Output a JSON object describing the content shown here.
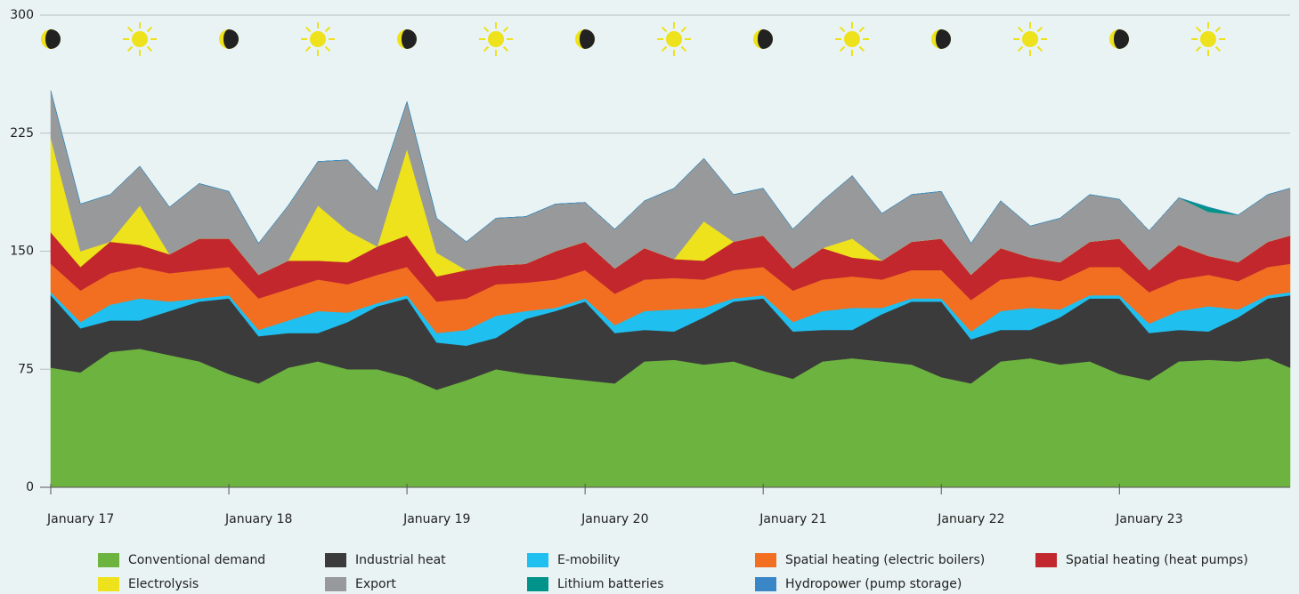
{
  "chart_data": {
    "type": "stacked_area",
    "x": [
      0,
      4,
      8,
      12,
      16,
      20,
      24,
      28,
      32,
      36,
      40,
      44,
      48,
      52,
      56,
      60,
      64,
      68,
      72,
      76,
      80,
      84,
      88,
      92,
      96,
      100,
      104,
      108,
      112,
      116,
      120,
      124,
      128,
      132,
      136,
      140,
      144,
      148,
      152,
      156,
      160,
      164,
      167
    ],
    "xlim": [
      0,
      167
    ],
    "xticks": [
      {
        "value": 0,
        "label": "January 17"
      },
      {
        "value": 24,
        "label": "January 18"
      },
      {
        "value": 48,
        "label": "January 19"
      },
      {
        "value": 72,
        "label": "January 20"
      },
      {
        "value": 96,
        "label": "January 21"
      },
      {
        "value": 120,
        "label": "January 22"
      },
      {
        "value": 144,
        "label": "January 23"
      }
    ],
    "ylim": [
      0,
      300
    ],
    "yticks": [
      0,
      75,
      150,
      225,
      300
    ],
    "grid": true,
    "series": [
      {
        "name": "Conventional demand",
        "color": "#6db33f",
        "values": [
          76,
          73,
          86,
          88,
          84,
          80,
          72,
          66,
          76,
          80,
          75,
          75,
          70,
          62,
          68,
          75,
          72,
          70,
          68,
          66,
          80,
          81,
          78,
          80,
          74,
          69,
          80,
          82,
          80,
          78,
          70,
          66,
          80,
          82,
          78,
          80,
          72,
          68,
          80,
          81,
          80,
          82,
          76
        ]
      },
      {
        "name": "Industrial heat",
        "color": "#3b3b3b",
        "values": [
          46,
          28,
          20,
          18,
          28,
          38,
          48,
          30,
          22,
          18,
          30,
          40,
          50,
          30,
          22,
          20,
          35,
          42,
          50,
          32,
          20,
          18,
          30,
          38,
          46,
          30,
          20,
          18,
          30,
          40,
          48,
          28,
          20,
          18,
          30,
          40,
          48,
          30,
          20,
          18,
          28,
          38,
          46
        ]
      },
      {
        "name": "E-mobility",
        "color": "#1fbfef",
        "values": [
          2,
          4,
          10,
          14,
          6,
          2,
          2,
          4,
          8,
          14,
          6,
          2,
          2,
          6,
          10,
          14,
          5,
          2,
          2,
          5,
          12,
          14,
          6,
          2,
          2,
          6,
          12,
          14,
          4,
          2,
          2,
          5,
          12,
          14,
          5,
          2,
          2,
          6,
          12,
          16,
          5,
          2,
          2
        ]
      },
      {
        "name": "Spatial heating (electric boilers)",
        "color": "#f26f21",
        "values": [
          18,
          20,
          20,
          20,
          18,
          18,
          18,
          20,
          20,
          20,
          18,
          18,
          18,
          20,
          20,
          20,
          18,
          18,
          18,
          20,
          20,
          20,
          18,
          18,
          18,
          20,
          20,
          20,
          18,
          18,
          18,
          20,
          20,
          20,
          18,
          18,
          18,
          20,
          20,
          20,
          18,
          18,
          18
        ]
      },
      {
        "name": "Spatial heating (heat pumps)",
        "color": "#c1272d",
        "values": [
          20,
          15,
          20,
          14,
          12,
          20,
          18,
          15,
          18,
          12,
          14,
          18,
          20,
          16,
          18,
          12,
          12,
          18,
          18,
          16,
          20,
          12,
          12,
          18,
          20,
          14,
          20,
          12,
          12,
          18,
          20,
          16,
          20,
          12,
          12,
          16,
          18,
          14,
          22,
          12,
          12,
          16,
          18
        ]
      },
      {
        "name": "Electrolysis",
        "color": "#ede21b",
        "values": [
          60,
          10,
          0,
          25,
          0,
          0,
          0,
          0,
          0,
          35,
          20,
          0,
          55,
          15,
          0,
          0,
          0,
          0,
          0,
          0,
          0,
          0,
          25,
          0,
          0,
          0,
          0,
          12,
          0,
          0,
          0,
          0,
          0,
          0,
          0,
          0,
          0,
          0,
          0,
          0,
          0,
          0,
          0
        ]
      },
      {
        "name": "Export",
        "color": "#98999b",
        "values": [
          30,
          30,
          30,
          25,
          30,
          35,
          30,
          20,
          35,
          28,
          45,
          35,
          30,
          22,
          18,
          30,
          30,
          30,
          25,
          25,
          30,
          45,
          40,
          30,
          30,
          25,
          30,
          40,
          30,
          30,
          30,
          20,
          30,
          20,
          28,
          30,
          25,
          25,
          30,
          28,
          30,
          30,
          30
        ]
      },
      {
        "name": "Lithium batteries",
        "color": "#00938a",
        "values": [
          0,
          0,
          0,
          0,
          0,
          0,
          0,
          0,
          0,
          0,
          0,
          0,
          0,
          0,
          0,
          0,
          0,
          0,
          0,
          0,
          0,
          0,
          0,
          0,
          0,
          0,
          0,
          0,
          0,
          0,
          0,
          0,
          0,
          0,
          0,
          0,
          0,
          0,
          0,
          3,
          0,
          0,
          0
        ]
      },
      {
        "name": "Hydropower (pump storage)",
        "color": "#3a87c8",
        "values": [
          0,
          0,
          0,
          0,
          0,
          0,
          0,
          0,
          0,
          0,
          0,
          0,
          0,
          0,
          0,
          0,
          0,
          0,
          0,
          0,
          0,
          0,
          0,
          0,
          0,
          0,
          0,
          0,
          0,
          0,
          0,
          0,
          0,
          0,
          0,
          0,
          0,
          0,
          0,
          0,
          0,
          0,
          0
        ]
      }
    ]
  }
}
